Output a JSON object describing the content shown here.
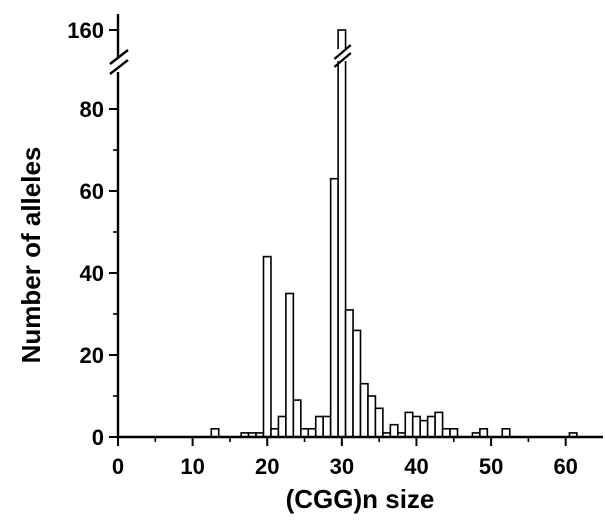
{
  "chart_data": {
    "type": "bar",
    "title": "",
    "xlabel": "(CGG)n size",
    "ylabel": "Number of alleles",
    "xlim": [
      0,
      65
    ],
    "ylim_lower": [
      0,
      90
    ],
    "ylim_upper_label": 160,
    "axis_break": true,
    "x_ticks": [
      0,
      10,
      20,
      30,
      40,
      50,
      60
    ],
    "y_ticks": [
      0,
      20,
      40,
      60,
      80,
      160
    ],
    "grid": false,
    "bar_width": 1,
    "x": [
      13,
      17,
      18,
      19,
      20,
      21,
      22,
      23,
      24,
      25,
      26,
      27,
      28,
      29,
      30,
      31,
      32,
      33,
      34,
      35,
      36,
      37,
      38,
      39,
      40,
      41,
      42,
      43,
      44,
      45,
      48,
      49,
      52,
      61
    ],
    "values": [
      2,
      1,
      1,
      1,
      44,
      2,
      5,
      35,
      9,
      2,
      2,
      5,
      5,
      63,
      160,
      31,
      26,
      13,
      10,
      7,
      1,
      3,
      1,
      6,
      5,
      4,
      5,
      6,
      2,
      2,
      1,
      2,
      2,
      1
    ]
  }
}
